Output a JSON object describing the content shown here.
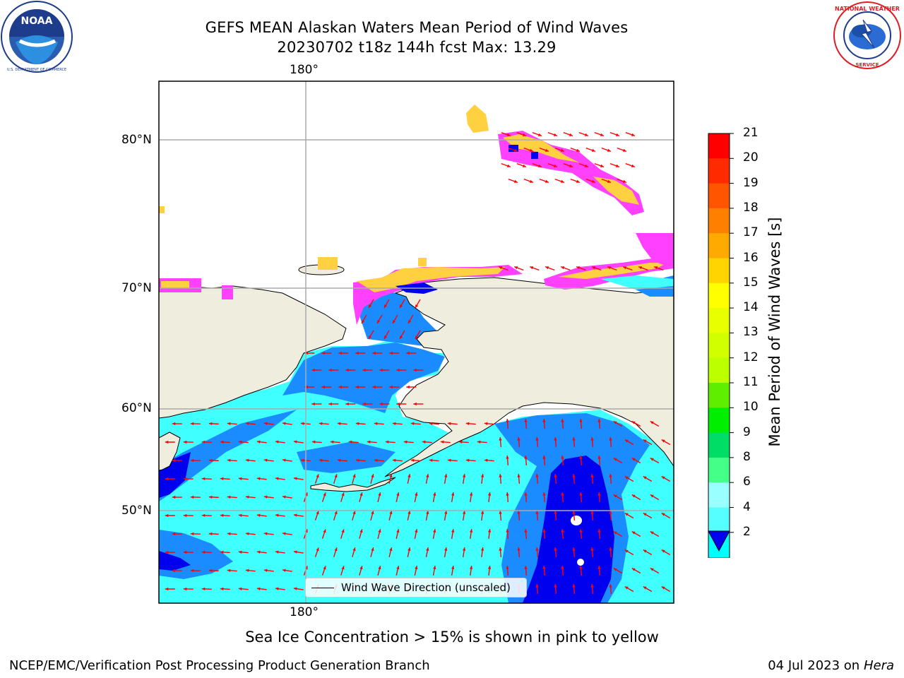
{
  "title": {
    "line1": "GEFS MEAN Alaskan Waters Mean Period of Wind Waves",
    "line2": "20230702 t18z 144h fcst   Max: 13.29"
  },
  "logos": {
    "left": {
      "name": "NOAA",
      "ring_text": "NATIONAL OCEANIC AND ATMOSPHERIC ADMINISTRATION · U.S. DEPARTMENT OF COMMERCE"
    },
    "right": {
      "name": "NATIONAL WEATHER SERVICE"
    }
  },
  "map": {
    "lon_labels": {
      "top": "180°",
      "bottom": "180°"
    },
    "lat_labels": [
      "80°N",
      "70°N",
      "60°N",
      "50°N"
    ],
    "legend": "Wind Wave Direction (unscaled)",
    "colors": {
      "land": "#efedde",
      "ocean_2_4": "#1a8cff",
      "ocean_4_6": "#00ffff",
      "ocean_6_8": "#40ffff",
      "ocean_lt2": "#0000ee",
      "arrows": "#ff0000",
      "ice_pink": "#ff40ff",
      "ice_yellow": "#ffd040"
    }
  },
  "colorbar": {
    "label": "Mean Period of Wind Waves [s]",
    "ticks": [
      "21",
      "20",
      "19",
      "18",
      "17",
      "16",
      "15",
      "14",
      "13",
      "12",
      "11",
      "10",
      "9",
      "8",
      "6",
      "4",
      "2"
    ],
    "colors": [
      "#ff0000",
      "#ff2a00",
      "#ff5500",
      "#ff8000",
      "#ffaa00",
      "#ffd400",
      "#ffff00",
      "#e8ff00",
      "#d2ff00",
      "#bbff00",
      "#5fee00",
      "#00ee00",
      "#00dd66",
      "#44ff88",
      "#99ffff",
      "#55ffff",
      "#00ffff",
      "#1a8cff"
    ],
    "under_color": "#0000ee"
  },
  "caption": "Sea Ice Concentration > 15% is shown in pink to yellow",
  "footer": {
    "left": "NCEP/EMC/Verification Post Processing Product Generation Branch",
    "right_date": "04 Jul 2023 on ",
    "right_host": "Hera"
  }
}
